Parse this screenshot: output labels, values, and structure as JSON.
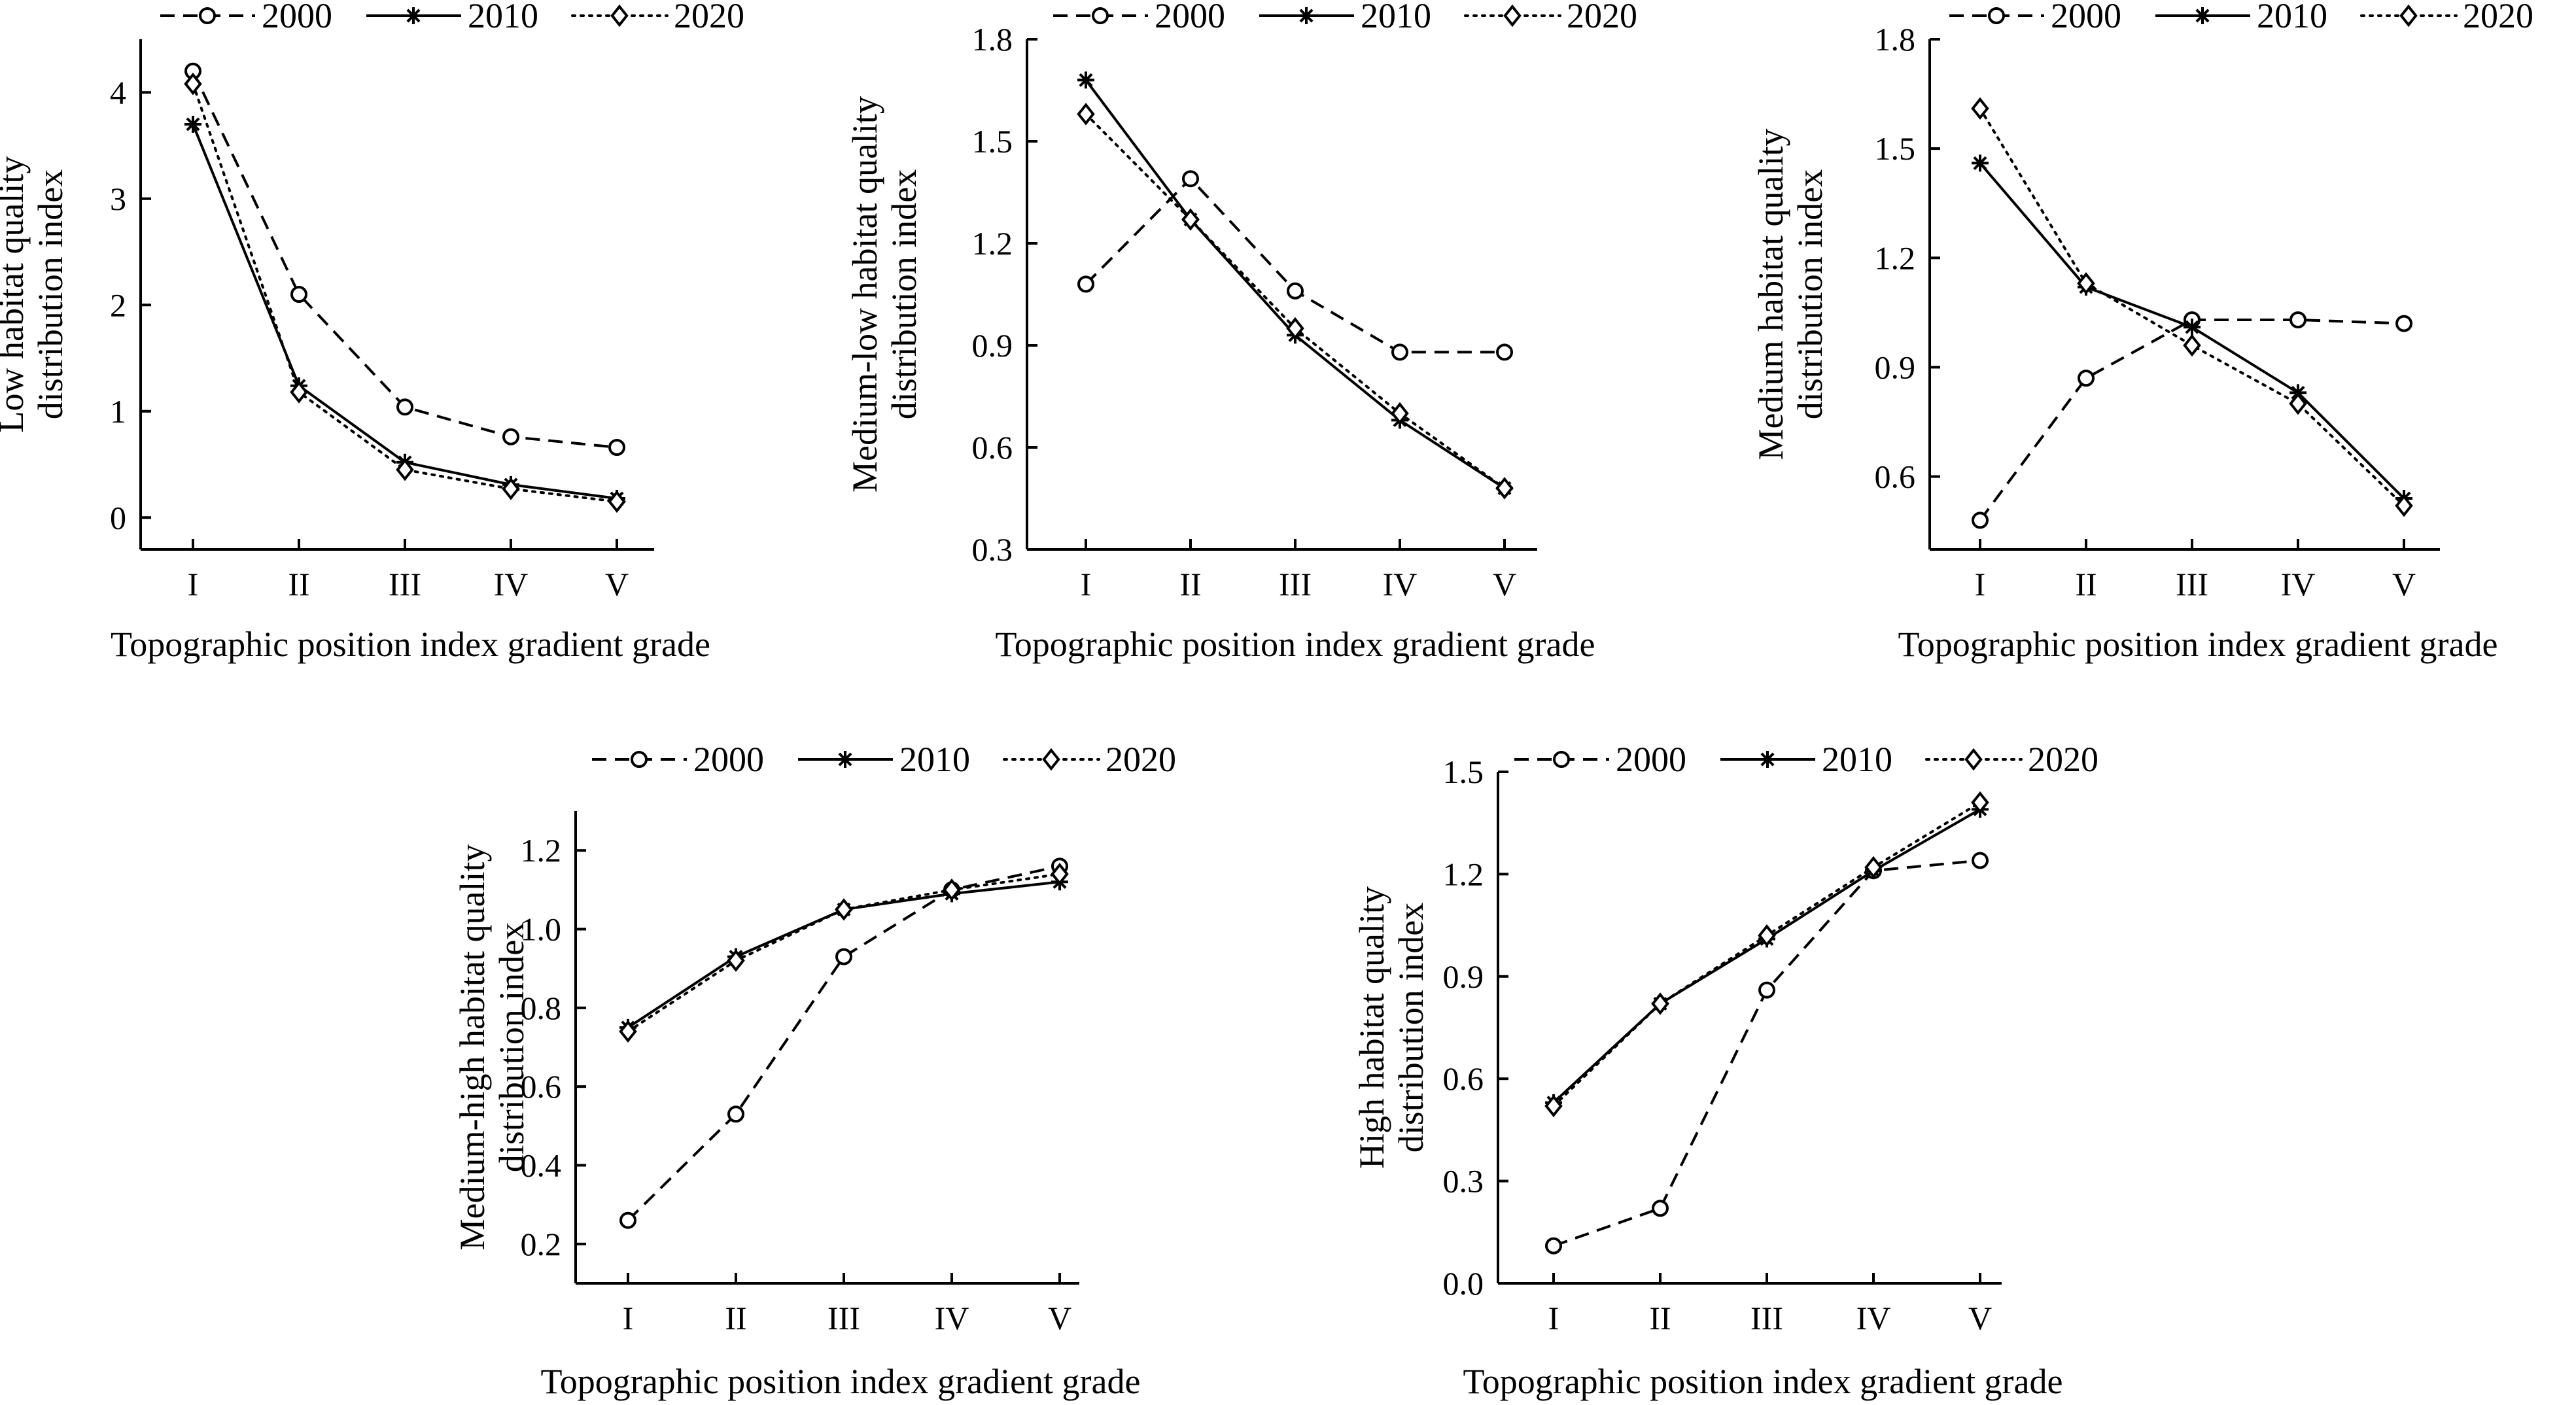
{
  "chart_data": [
    {
      "type": "line",
      "categories": [
        "I",
        "II",
        "III",
        "IV",
        "V"
      ],
      "xlabel": "Topographic position index gradient grade",
      "ylabel_lines": [
        "Low habitat quality",
        "distribution index"
      ],
      "ylim": [
        -0.3,
        4.5
      ],
      "yticks": [
        0,
        1,
        2,
        3,
        4
      ],
      "tick_decimals": 0,
      "series": [
        {
          "name": "2000",
          "marker": "circle",
          "dash": "dashed",
          "values": [
            4.2,
            2.1,
            1.04,
            0.76,
            0.66
          ]
        },
        {
          "name": "2010",
          "marker": "asterisk",
          "dash": "solid",
          "values": [
            3.7,
            1.24,
            0.52,
            0.31,
            0.18
          ]
        },
        {
          "name": "2020",
          "marker": "diamond",
          "dash": "dotted",
          "values": [
            4.08,
            1.18,
            0.45,
            0.27,
            0.15
          ]
        }
      ]
    },
    {
      "type": "line",
      "categories": [
        "I",
        "II",
        "III",
        "IV",
        "V"
      ],
      "xlabel": "Topographic position index gradient grade",
      "ylabel_lines": [
        "Medium-low habitat quality",
        "distribution index"
      ],
      "ylim": [
        0.3,
        1.8
      ],
      "yticks": [
        0.3,
        0.6,
        0.9,
        1.2,
        1.5,
        1.8
      ],
      "tick_decimals": 1,
      "series": [
        {
          "name": "2000",
          "marker": "circle",
          "dash": "dashed",
          "values": [
            1.08,
            1.39,
            1.06,
            0.88,
            0.88
          ]
        },
        {
          "name": "2010",
          "marker": "asterisk",
          "dash": "solid",
          "values": [
            1.68,
            1.27,
            0.93,
            0.68,
            0.48
          ]
        },
        {
          "name": "2020",
          "marker": "diamond",
          "dash": "dotted",
          "values": [
            1.58,
            1.27,
            0.95,
            0.7,
            0.48
          ]
        }
      ]
    },
    {
      "type": "line",
      "categories": [
        "I",
        "II",
        "III",
        "IV",
        "V"
      ],
      "xlabel": "Topographic position index gradient grade",
      "ylabel_lines": [
        "Medium habitat quality",
        "distribution index"
      ],
      "ylim": [
        0.4,
        1.8
      ],
      "yticks": [
        0.6,
        0.9,
        1.2,
        1.5,
        1.8
      ],
      "tick_decimals": 1,
      "series": [
        {
          "name": "2000",
          "marker": "circle",
          "dash": "dashed",
          "values": [
            0.48,
            0.87,
            1.03,
            1.03,
            1.02
          ]
        },
        {
          "name": "2010",
          "marker": "asterisk",
          "dash": "solid",
          "values": [
            1.46,
            1.12,
            1.01,
            0.83,
            0.54
          ]
        },
        {
          "name": "2020",
          "marker": "diamond",
          "dash": "dotted",
          "values": [
            1.61,
            1.13,
            0.96,
            0.8,
            0.52
          ]
        }
      ]
    },
    {
      "type": "line",
      "categories": [
        "I",
        "II",
        "III",
        "IV",
        "V"
      ],
      "xlabel": "Topographic position index gradient grade",
      "ylabel_lines": [
        "Medium-high habitat quality",
        "distribution index"
      ],
      "ylim": [
        0.1,
        1.3
      ],
      "yticks": [
        0.2,
        0.4,
        0.6,
        0.8,
        1.0,
        1.2
      ],
      "tick_decimals": 1,
      "series": [
        {
          "name": "2000",
          "marker": "circle",
          "dash": "dashed",
          "values": [
            0.26,
            0.53,
            0.93,
            1.1,
            1.16
          ]
        },
        {
          "name": "2010",
          "marker": "asterisk",
          "dash": "solid",
          "values": [
            0.75,
            0.93,
            1.05,
            1.09,
            1.12
          ]
        },
        {
          "name": "2020",
          "marker": "diamond",
          "dash": "dotted",
          "values": [
            0.74,
            0.92,
            1.05,
            1.1,
            1.14
          ]
        }
      ]
    },
    {
      "type": "line",
      "categories": [
        "I",
        "II",
        "III",
        "IV",
        "V"
      ],
      "xlabel": "Topographic position index gradient grade",
      "ylabel_lines": [
        "High habitat quality",
        "distribution index"
      ],
      "ylim": [
        0,
        1.5
      ],
      "yticks": [
        0,
        0.3,
        0.6,
        0.9,
        1.2,
        1.5
      ],
      "tick_decimals": 1,
      "series": [
        {
          "name": "2000",
          "marker": "circle",
          "dash": "dashed",
          "values": [
            0.11,
            0.22,
            0.86,
            1.21,
            1.24
          ]
        },
        {
          "name": "2010",
          "marker": "asterisk",
          "dash": "solid",
          "values": [
            0.53,
            0.82,
            1.01,
            1.21,
            1.39
          ]
        },
        {
          "name": "2020",
          "marker": "diamond",
          "dash": "dotted",
          "values": [
            0.52,
            0.82,
            1.02,
            1.22,
            1.41
          ]
        }
      ]
    }
  ]
}
